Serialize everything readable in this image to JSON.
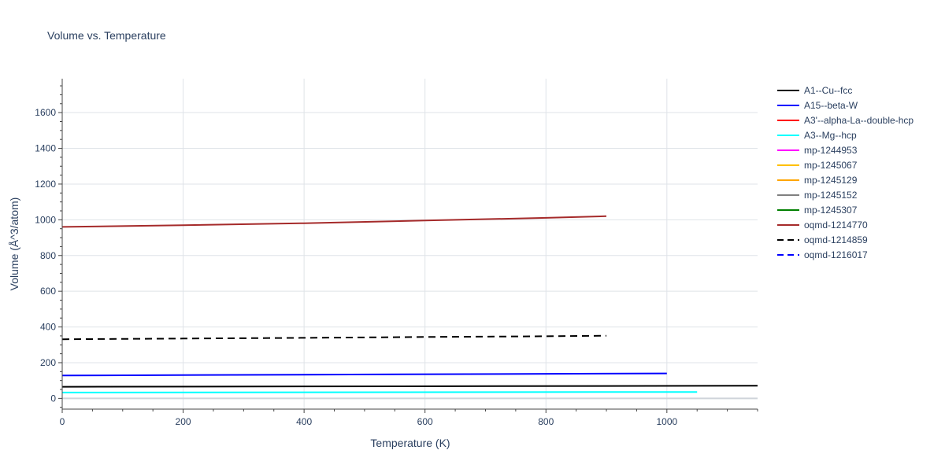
{
  "chart_data": {
    "type": "line",
    "title": "Volume vs. Temperature",
    "xlabel": "Temperature (K)",
    "ylabel": "Volume (Å^3/atom)",
    "xlim": [
      0,
      1150
    ],
    "ylim": [
      -60,
      1790
    ],
    "x_ticks": [
      0,
      200,
      400,
      600,
      800,
      1000
    ],
    "y_ticks": [
      0,
      200,
      400,
      600,
      800,
      1000,
      1200,
      1400,
      1600
    ],
    "grid": true,
    "legend_position": "right",
    "series": [
      {
        "name": "A1--Cu--fcc",
        "color": "#000000",
        "dash": "solid",
        "x": [
          0,
          1150
        ],
        "y": [
          65,
          71
        ]
      },
      {
        "name": "A15--beta-W",
        "color": "#0000ff",
        "dash": "solid",
        "x": [
          0,
          1000
        ],
        "y": [
          128,
          140
        ]
      },
      {
        "name": "A3'--alpha-La--double-hcp",
        "color": "#ff0000",
        "dash": "solid",
        "x": [],
        "y": []
      },
      {
        "name": "A3--Mg--hcp",
        "color": "#00ffff",
        "dash": "solid",
        "x": [
          0,
          1050
        ],
        "y": [
          33,
          36
        ]
      },
      {
        "name": "mp-1244953",
        "color": "#ff00ff",
        "dash": "solid",
        "x": [],
        "y": []
      },
      {
        "name": "mp-1245067",
        "color": "#ffc000",
        "dash": "solid",
        "x": [],
        "y": []
      },
      {
        "name": "mp-1245129",
        "color": "#ffa500",
        "dash": "solid",
        "x": [],
        "y": []
      },
      {
        "name": "mp-1245152",
        "color": "#808080",
        "dash": "solid",
        "x": [],
        "y": []
      },
      {
        "name": "mp-1245307",
        "color": "#008000",
        "dash": "solid",
        "x": [],
        "y": []
      },
      {
        "name": "oqmd-1214770",
        "color": "#a52a2a",
        "dash": "solid",
        "x": [
          0,
          200,
          400,
          600,
          800,
          900
        ],
        "y": [
          960,
          970,
          981,
          996,
          1011,
          1020
        ]
      },
      {
        "name": "oqmd-1214859",
        "color": "#000000",
        "dash": "dash",
        "x": [
          0,
          200,
          400,
          600,
          800,
          900
        ],
        "y": [
          331,
          335,
          339,
          344,
          348,
          351
        ]
      },
      {
        "name": "oqmd-1216017",
        "color": "#0000ff",
        "dash": "dash",
        "x": [],
        "y": []
      }
    ]
  }
}
